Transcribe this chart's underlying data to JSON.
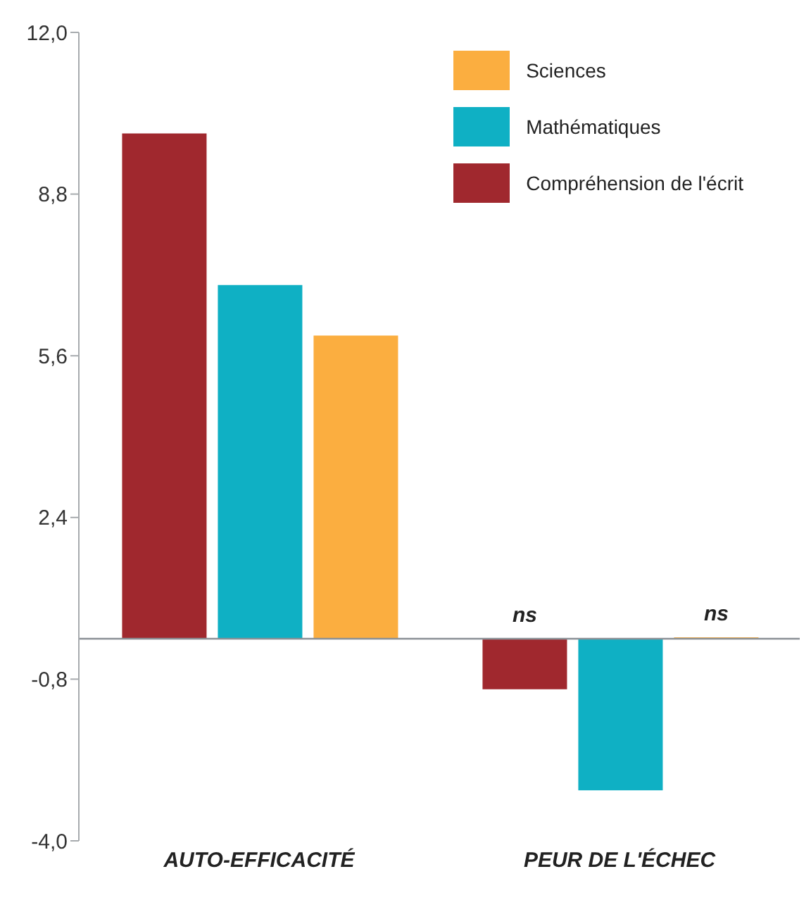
{
  "chart_data": {
    "type": "bar",
    "categories": [
      "AUTO-EFFICACITÉ",
      "PEUR DE L'ÉCHEC"
    ],
    "series": [
      {
        "name": "Compréhension de l'écrit",
        "color": "#a0282e",
        "values": [
          10.0,
          -1.0
        ],
        "value_labels": [
          null,
          "ns"
        ]
      },
      {
        "name": "Mathématiques",
        "color": "#0fb0c4",
        "values": [
          7.0,
          -3.0
        ]
      },
      {
        "name": "Sciences",
        "color": "#fbae40",
        "values": [
          6.0,
          0
        ],
        "value_labels": [
          null,
          "ns"
        ]
      }
    ],
    "ylim": [
      -4,
      12
    ],
    "yticks": [
      {
        "value": 12,
        "label": "12,0"
      },
      {
        "value": 8.8,
        "label": "8,8"
      },
      {
        "value": 5.6,
        "label": "5,6"
      },
      {
        "value": 2.4,
        "label": "2,4"
      },
      {
        "value": -0.8,
        "label": "-0,8"
      },
      {
        "value": -4,
        "label": "-4,0"
      }
    ],
    "grid": false,
    "legend": "top right"
  }
}
